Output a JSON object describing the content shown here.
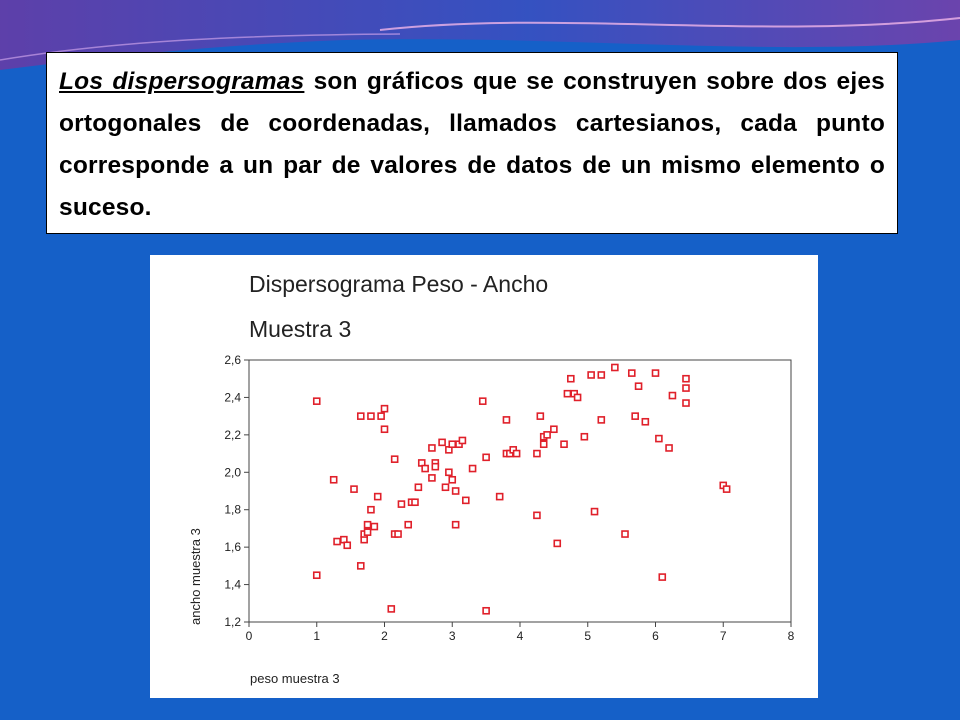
{
  "slide": {
    "paragraph_lead": "Los dispersogramas",
    "paragraph_rest": " son gráficos que se construyen sobre dos ejes ortogonales de coordenadas, llamados cartesianos, cada punto corresponde a un par de valores de datos de un mismo elemento o suceso.",
    "background_color": "#1560c8",
    "accent_color": "#7a3fa8"
  },
  "chart_data": {
    "type": "scatter",
    "title": "Dispersograma  Peso - Ancho",
    "subtitle": "Muestra 3",
    "xlabel": "peso muestra 3",
    "ylabel": "ancho muestra 3",
    "xlim": [
      0,
      8
    ],
    "ylim": [
      1.2,
      2.6
    ],
    "xticks": [
      "0",
      "1",
      "2",
      "3",
      "4",
      "5",
      "6",
      "7",
      "8"
    ],
    "yticks": [
      "1,2",
      "1,4",
      "1,6",
      "1,8",
      "2,0",
      "2,2",
      "2,4",
      "2,6"
    ],
    "marker_color": "#e0202a",
    "grid": false,
    "x": [
      1.0,
      1.0,
      1.25,
      1.3,
      1.4,
      1.45,
      1.55,
      1.65,
      1.65,
      1.7,
      1.7,
      1.75,
      1.75,
      1.8,
      1.8,
      1.85,
      1.9,
      1.95,
      2.0,
      2.0,
      2.1,
      2.15,
      2.15,
      2.2,
      2.25,
      2.35,
      2.4,
      2.45,
      2.5,
      2.55,
      2.6,
      2.7,
      2.7,
      2.75,
      2.75,
      2.85,
      2.9,
      2.95,
      2.95,
      3.0,
      3.0,
      3.05,
      3.05,
      3.1,
      3.15,
      3.2,
      3.3,
      3.45,
      3.5,
      3.5,
      3.7,
      3.8,
      3.8,
      3.85,
      3.9,
      3.95,
      4.25,
      4.25,
      4.3,
      4.35,
      4.35,
      4.4,
      4.5,
      4.55,
      4.65,
      4.7,
      4.75,
      4.8,
      4.85,
      4.95,
      5.05,
      5.1,
      5.2,
      5.2,
      5.4,
      5.55,
      5.65,
      5.7,
      5.75,
      5.85,
      6.0,
      6.05,
      6.1,
      6.2,
      6.25,
      6.45,
      6.45,
      6.45,
      7.0,
      7.05
    ],
    "y": [
      2.38,
      1.45,
      1.96,
      1.63,
      1.64,
      1.61,
      1.91,
      1.5,
      2.3,
      1.64,
      1.67,
      1.68,
      1.72,
      1.8,
      2.3,
      1.71,
      1.87,
      2.3,
      2.34,
      2.23,
      1.27,
      2.07,
      1.67,
      1.67,
      1.83,
      1.72,
      1.84,
      1.84,
      1.92,
      2.05,
      2.02,
      1.97,
      2.13,
      2.05,
      2.03,
      2.16,
      1.92,
      2.12,
      2.0,
      2.15,
      1.96,
      1.72,
      1.9,
      2.15,
      2.17,
      1.85,
      2.02,
      2.38,
      2.08,
      1.26,
      1.87,
      2.28,
      2.1,
      2.1,
      2.12,
      2.1,
      2.1,
      1.77,
      2.3,
      2.15,
      2.19,
      2.2,
      2.23,
      1.62,
      2.15,
      2.42,
      2.5,
      2.42,
      2.4,
      2.19,
      2.52,
      1.79,
      2.28,
      2.52,
      2.56,
      1.67,
      2.53,
      2.3,
      2.46,
      2.27,
      2.53,
      2.18,
      1.44,
      2.13,
      2.41,
      2.37,
      2.45,
      2.5,
      1.93,
      1.91
    ]
  }
}
